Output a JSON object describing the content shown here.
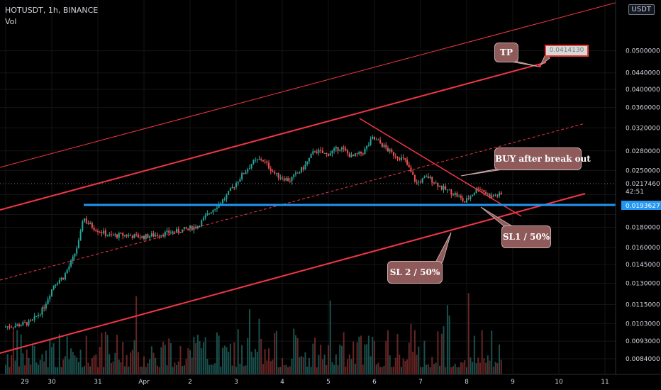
{
  "header": {
    "symbol_line": "HOTUSDT, 1h, BINANCE",
    "vol_label": "Vol"
  },
  "currency": "USDT",
  "colors": {
    "bg": "#000000",
    "up": "#26a69a",
    "down": "#ef5350",
    "channel": "#f23645",
    "support": "#2196f3",
    "axis_text": "#d1d4dc",
    "callout": "#8e5a5a"
  },
  "chart_data": {
    "type": "candlestick",
    "title": "HOTUSDT, 1h, BINANCE",
    "y_scale": "log",
    "ylim": [
      0.0078,
      0.066
    ],
    "x_ticks": [
      "29",
      "30",
      "31",
      "Apr",
      "2",
      "3",
      "4",
      "5",
      "6",
      "7",
      "8",
      "9",
      "10",
      "11"
    ],
    "y_ticks": [
      "0.0500000",
      "0.0440000",
      "0.0400000",
      "0.0360000",
      "0.0320000",
      "0.0280000",
      "0.0250000",
      "0.0217460",
      "0.0193627",
      "0.0180000",
      "0.0160000",
      "0.0145000",
      "0.0130000",
      "0.0115000",
      "0.0103000",
      "0.0093000",
      "0.0084000"
    ],
    "last_price": "0.0217460",
    "countdown": "42:51",
    "support_level": "0.0193627",
    "annotations": {
      "tp": "TP",
      "tp_price": "0.0414130",
      "buy": "BUY after break out",
      "sl1": "SL1 / 50%",
      "sl2": "SL 2 / 50%"
    },
    "price_path": [
      [
        29.0,
        0.0101
      ],
      [
        29.3,
        0.0102
      ],
      [
        29.6,
        0.0104
      ],
      [
        29.85,
        0.0112
      ],
      [
        30.1,
        0.013
      ],
      [
        30.3,
        0.0135
      ],
      [
        30.5,
        0.015
      ],
      [
        30.65,
        0.0168
      ],
      [
        30.72,
        0.0192
      ],
      [
        30.8,
        0.0185
      ],
      [
        31.0,
        0.0178
      ],
      [
        31.3,
        0.0171
      ],
      [
        31.6,
        0.0172
      ],
      [
        32.0,
        0.017
      ],
      [
        32.4,
        0.0173
      ],
      [
        32.8,
        0.0176
      ],
      [
        33.2,
        0.0181
      ],
      [
        33.5,
        0.0198
      ],
      [
        33.8,
        0.0213
      ],
      [
        34.1,
        0.0238
      ],
      [
        34.4,
        0.0262
      ],
      [
        34.6,
        0.0267
      ],
      [
        34.9,
        0.0244
      ],
      [
        35.2,
        0.0236
      ],
      [
        35.5,
        0.0254
      ],
      [
        35.75,
        0.0281
      ],
      [
        36.0,
        0.0274
      ],
      [
        36.3,
        0.0286
      ],
      [
        36.55,
        0.027
      ],
      [
        36.8,
        0.0278
      ],
      [
        37.0,
        0.0301
      ],
      [
        37.15,
        0.0294
      ],
      [
        37.4,
        0.0277
      ],
      [
        37.7,
        0.0265
      ],
      [
        37.95,
        0.0232
      ],
      [
        38.2,
        0.0241
      ],
      [
        38.5,
        0.0226
      ],
      [
        38.8,
        0.0218
      ],
      [
        39.0,
        0.0208
      ],
      [
        39.3,
        0.0227
      ],
      [
        39.55,
        0.0215
      ],
      [
        39.75,
        0.0217
      ]
    ],
    "volume_max": 1.0
  }
}
